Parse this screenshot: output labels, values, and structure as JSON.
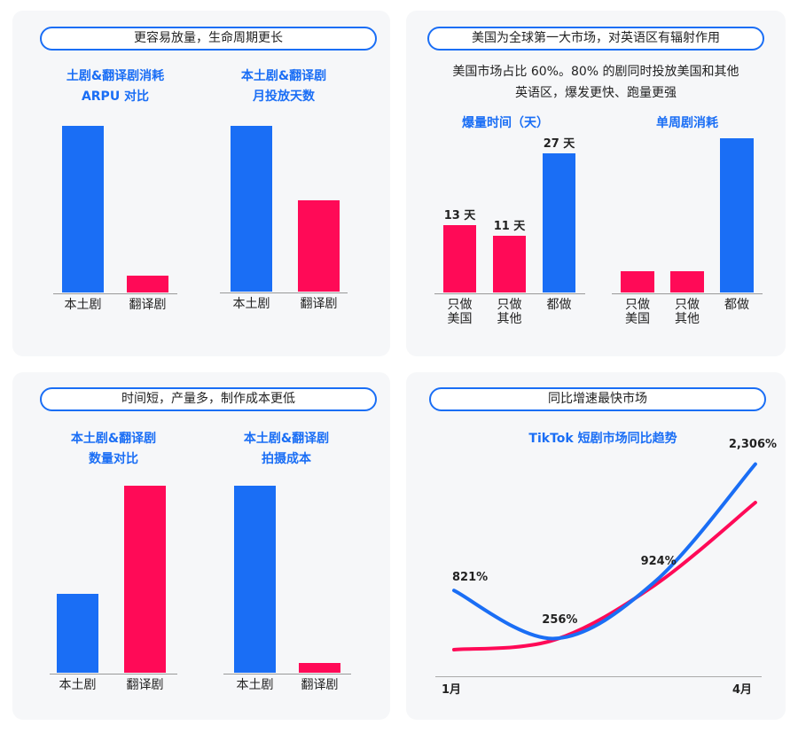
{
  "colors": {
    "blue": "#1a6ef5",
    "red": "#ff0a57"
  },
  "panels": {
    "tl": {
      "header": "更容易放量，生命周期更长"
    },
    "tr": {
      "header": "美国为全球第一大市场，对英语区有辐射作用",
      "desc_line1": "美国市场占比 60%。80% 的剧同时投放美国和其他",
      "desc_line2": "英语区，爆发更快、跑量更强"
    },
    "bl": {
      "header": "时间短，产量多，制作成本更低"
    },
    "br": {
      "header": "同比增速最快市场"
    }
  },
  "chart_data": [
    {
      "id": "arpu",
      "type": "bar",
      "title_line1": "土剧&翻译剧消耗",
      "title_line2": "ARPU 对比",
      "categories": [
        "本土剧",
        "翻译剧"
      ],
      "values": [
        100,
        10
      ],
      "colors": [
        "blue",
        "red"
      ],
      "note": "relative, no axis"
    },
    {
      "id": "days",
      "type": "bar",
      "title_line1": "本土剧&翻译剧",
      "title_line2": "月投放天数",
      "categories": [
        "本土剧",
        "翻译剧"
      ],
      "values": [
        100,
        55
      ],
      "colors": [
        "blue",
        "red"
      ]
    },
    {
      "id": "burst",
      "type": "bar",
      "title": "爆量时间（天）",
      "categories": [
        "只做\n美国",
        "只做\n其他",
        "都做"
      ],
      "values": [
        13,
        11,
        27
      ],
      "value_labels": [
        "13 天",
        "11 天",
        "27 天"
      ],
      "colors": [
        "red",
        "red",
        "blue"
      ]
    },
    {
      "id": "weekly",
      "type": "bar",
      "title": "单周剧消耗",
      "categories": [
        "只做\n美国",
        "只做\n其他",
        "都做"
      ],
      "values": [
        14,
        14,
        100
      ],
      "colors": [
        "red",
        "red",
        "blue"
      ]
    },
    {
      "id": "count",
      "type": "bar",
      "title_line1": "本土剧&翻译剧",
      "title_line2": "数量对比",
      "categories": [
        "本土剧",
        "翻译剧"
      ],
      "values": [
        42,
        100
      ],
      "colors": [
        "blue",
        "red"
      ]
    },
    {
      "id": "cost",
      "type": "bar",
      "title_line1": "本土剧&翻译剧",
      "title_line2": "拍摄成本",
      "categories": [
        "本土剧",
        "翻译剧"
      ],
      "values": [
        100,
        5
      ],
      "colors": [
        "blue",
        "red"
      ]
    },
    {
      "id": "trend",
      "type": "line",
      "title": "TikTok 短剧市场同比趋势",
      "x_labels": [
        "1月",
        "4月"
      ],
      "x": [
        1,
        2,
        3,
        4
      ],
      "series": [
        {
          "name": "blue",
          "color": "blue",
          "values": [
            821,
            256,
            924,
            2306
          ],
          "labels": [
            "821%",
            "256%",
            "924%",
            "2,306%"
          ]
        },
        {
          "name": "red",
          "color": "red",
          "values": [
            125,
            240,
            885,
            1854
          ]
        }
      ],
      "ylim": [
        0,
        2500
      ]
    }
  ]
}
